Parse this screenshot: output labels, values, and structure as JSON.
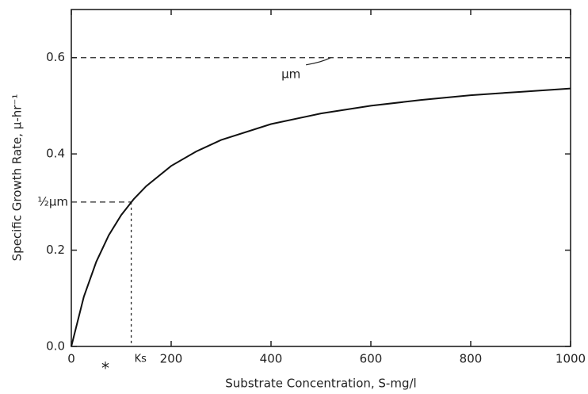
{
  "chart_data": {
    "type": "line",
    "xlabel": "Substrate Concentration, S-mg/l",
    "ylabel": "Specific Growth Rate, μ-hr⁻¹",
    "x": [
      0,
      25,
      50,
      75,
      100,
      125,
      150,
      200,
      250,
      300,
      400,
      500,
      600,
      700,
      800,
      900,
      1000
    ],
    "series": [
      {
        "color": "#111111",
        "values": [
          0,
          0.103,
          0.176,
          0.231,
          0.273,
          0.306,
          0.333,
          0.375,
          0.405,
          0.429,
          0.462,
          0.484,
          0.5,
          0.512,
          0.522,
          0.529,
          0.536
        ]
      }
    ],
    "xlim": [
      0,
      1000
    ],
    "ylim": [
      0,
      0.7
    ],
    "xticks": [
      0,
      200,
      400,
      600,
      800,
      1000
    ],
    "yticks": [
      {
        "value": 0,
        "label": "0.0"
      },
      0.2,
      0.4,
      0.6
    ],
    "mu_max": {
      "value": 0.6,
      "label": "μm"
    },
    "half_mu_max": {
      "value": 0.3,
      "label": "½μm"
    },
    "ks": {
      "value": 120,
      "label": "Ks"
    }
  }
}
